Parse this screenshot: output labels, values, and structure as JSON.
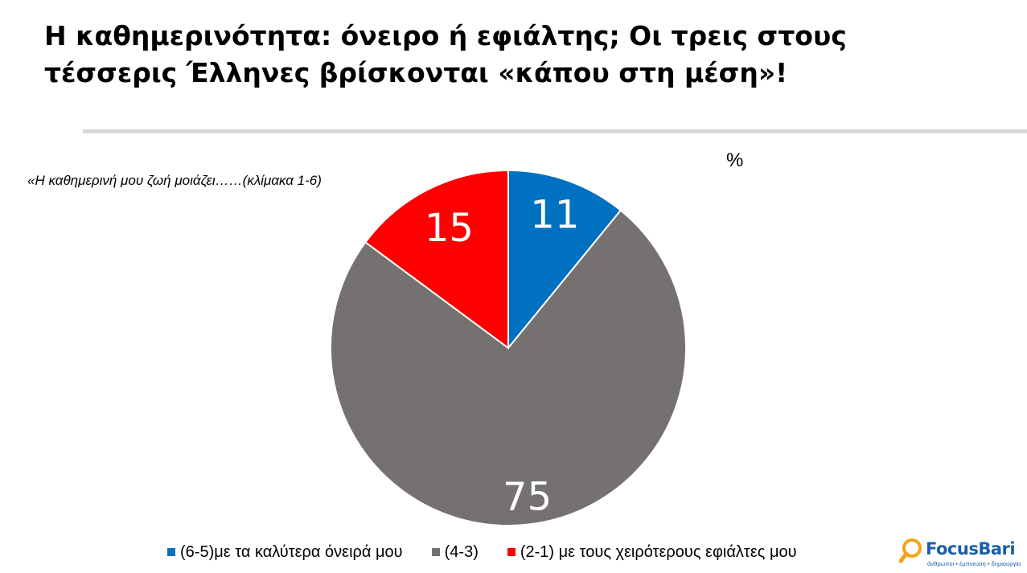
{
  "title": {
    "line1": "Η καθημερινότητα: όνειρο ή εφιάλτης;  Οι τρεις στους",
    "line2": "τέσσερις Έλληνες βρίσκονται «κάπου στη μέση»!"
  },
  "question": "«Η καθημερινή μου ζωή μοιάζει……(κλίμακα 1-6)",
  "unit_label": "%",
  "logo": {
    "name": "FocusBari",
    "tagline": "άνθρωποι • έμπνευση • δημιουργία"
  },
  "chart_data": {
    "type": "pie",
    "start_angle_deg": 0,
    "direction": "clockwise",
    "slices": [
      {
        "label": "(6-5)με τα καλύτερα όνειρά μου",
        "value": 11,
        "color": "#0070c0"
      },
      {
        "label": "(4-3)",
        "value": 75,
        "color": "#767171"
      },
      {
        "label": "(2-1) με τους χειρότερους εφιάλτες μου",
        "value": 15,
        "color": "#ff0000"
      }
    ],
    "data_label_color": "#ffffff",
    "legend_position": "bottom"
  }
}
